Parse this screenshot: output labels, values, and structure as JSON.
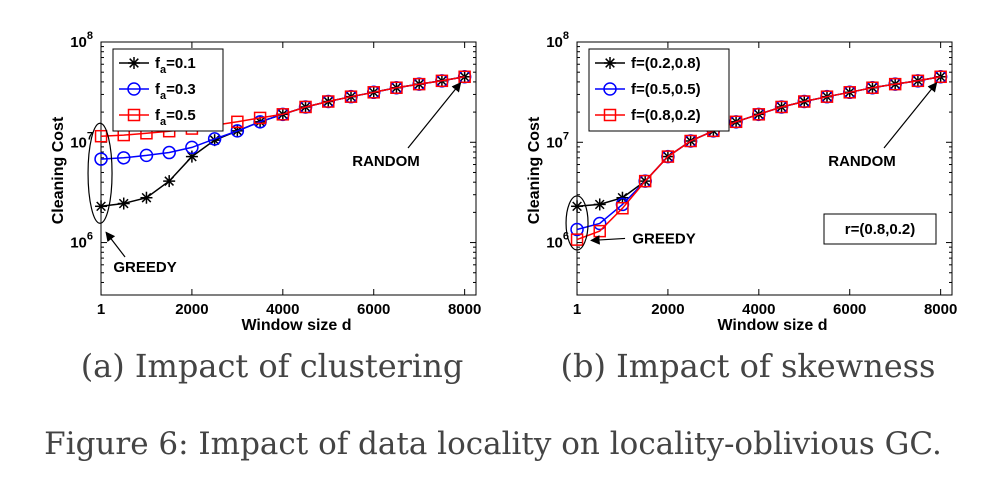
{
  "figure": {
    "caption": "Figure 6: Impact of data locality on locality-oblivious GC."
  },
  "colors": {
    "black": "#000000",
    "blue": "#0000ff",
    "red": "#ff0000"
  },
  "chart_data": [
    {
      "type": "line",
      "subcaption": "(a) Impact of clustering",
      "xlabel": "Window size d",
      "ylabel": "Cleaning Cost",
      "yscale": "log",
      "ylim": [
        300000,
        100000000
      ],
      "xlim": [
        0,
        8250
      ],
      "x_ticks": [
        "1",
        "2000",
        "4000",
        "6000",
        "8000"
      ],
      "y_ticks": [
        {
          "base": "10",
          "exp": "6"
        },
        {
          "base": "10",
          "exp": "7"
        },
        {
          "base": "10",
          "exp": "8"
        }
      ],
      "legend_position": "top-left",
      "series": [
        {
          "name_main": "f",
          "name_sub": "a",
          "name_rest": "=0.1",
          "marker": "asterisk",
          "color": "#000000",
          "x": [
            1,
            500,
            1000,
            1500,
            2000,
            2500,
            3000,
            3500,
            4000,
            4500,
            5000,
            5500,
            6000,
            6500,
            7000,
            7500,
            8000
          ],
          "y": [
            2300000,
            2450000,
            2800000,
            4100000,
            7200000,
            10500000,
            13000000,
            16000000,
            19000000,
            22500000,
            25500000,
            28500000,
            31500000,
            35000000,
            38000000,
            41000000,
            45000000
          ]
        },
        {
          "name_main": "f",
          "name_sub": "a",
          "name_rest": "=0.3",
          "marker": "circle",
          "color": "#0000ff",
          "x": [
            1,
            500,
            1000,
            1500,
            2000,
            2500,
            3000,
            3500,
            4000,
            4500,
            5000,
            5500,
            6000,
            6500,
            7000,
            7500,
            8000
          ],
          "y": [
            6800000,
            7000000,
            7400000,
            7900000,
            8900000,
            10800000,
            13000000,
            16000000,
            19000000,
            22500000,
            25500000,
            28500000,
            31500000,
            35000000,
            38000000,
            41000000,
            45000000
          ]
        },
        {
          "name_main": "f",
          "name_sub": "a",
          "name_rest": "=0.5",
          "marker": "square",
          "color": "#ff0000",
          "x": [
            1,
            500,
            1000,
            1500,
            2000,
            2500,
            3000,
            3500,
            4000,
            4500,
            5000,
            5500,
            6000,
            6500,
            7000,
            7500,
            8000
          ],
          "y": [
            11500000,
            11800000,
            12300000,
            12900000,
            13700000,
            14800000,
            16000000,
            17500000,
            19000000,
            22500000,
            25500000,
            28500000,
            31500000,
            35000000,
            38000000,
            41000000,
            45000000
          ]
        }
      ],
      "annotations": {
        "greedy": "GREEDY",
        "random": "RANDOM"
      }
    },
    {
      "type": "line",
      "subcaption": "(b) Impact of skewness",
      "xlabel": "Window size d",
      "ylabel": "Cleaning Cost",
      "yscale": "log",
      "ylim": [
        300000,
        100000000
      ],
      "xlim": [
        0,
        8250
      ],
      "x_ticks": [
        "1",
        "2000",
        "4000",
        "6000",
        "8000"
      ],
      "y_ticks": [
        {
          "base": "10",
          "exp": "6"
        },
        {
          "base": "10",
          "exp": "7"
        },
        {
          "base": "10",
          "exp": "8"
        }
      ],
      "legend_position": "top-left",
      "series": [
        {
          "name_main": "f=(0.2,0.8)",
          "name_sub": "",
          "name_rest": "",
          "marker": "asterisk",
          "color": "#000000",
          "x": [
            1,
            500,
            1000,
            1500,
            2000,
            2500,
            3000,
            3500,
            4000,
            4500,
            5000,
            5500,
            6000,
            6500,
            7000,
            7500,
            8000
          ],
          "y": [
            2300000,
            2400000,
            2800000,
            4100000,
            7200000,
            10300000,
            13000000,
            16000000,
            19000000,
            22500000,
            25500000,
            28500000,
            31500000,
            35000000,
            38000000,
            41000000,
            45000000
          ]
        },
        {
          "name_main": "f=(0.5,0.5)",
          "name_sub": "",
          "name_rest": "",
          "marker": "circle",
          "color": "#0000ff",
          "x": [
            1,
            500,
            1000,
            1500,
            2000,
            2500,
            3000,
            3500,
            4000,
            4500,
            5000,
            5500,
            6000,
            6500,
            7000,
            7500,
            8000
          ],
          "y": [
            1350000,
            1550000,
            2400000,
            4100000,
            7200000,
            10300000,
            13000000,
            16000000,
            19000000,
            22500000,
            25500000,
            28500000,
            31500000,
            35000000,
            38000000,
            41000000,
            45000000
          ]
        },
        {
          "name_main": "f=(0.8,0.2)",
          "name_sub": "",
          "name_rest": "",
          "marker": "square",
          "color": "#ff0000",
          "x": [
            1,
            500,
            1000,
            1500,
            2000,
            2500,
            3000,
            3500,
            4000,
            4500,
            5000,
            5500,
            6000,
            6500,
            7000,
            7500,
            8000
          ],
          "y": [
            1070000,
            1300000,
            2200000,
            4100000,
            7200000,
            10300000,
            13000000,
            16000000,
            19000000,
            22500000,
            25500000,
            28500000,
            31500000,
            35000000,
            38000000,
            41000000,
            45000000
          ]
        }
      ],
      "annotations": {
        "greedy": "GREEDY",
        "random": "RANDOM",
        "box": "r=(0.8,0.2)"
      }
    }
  ]
}
